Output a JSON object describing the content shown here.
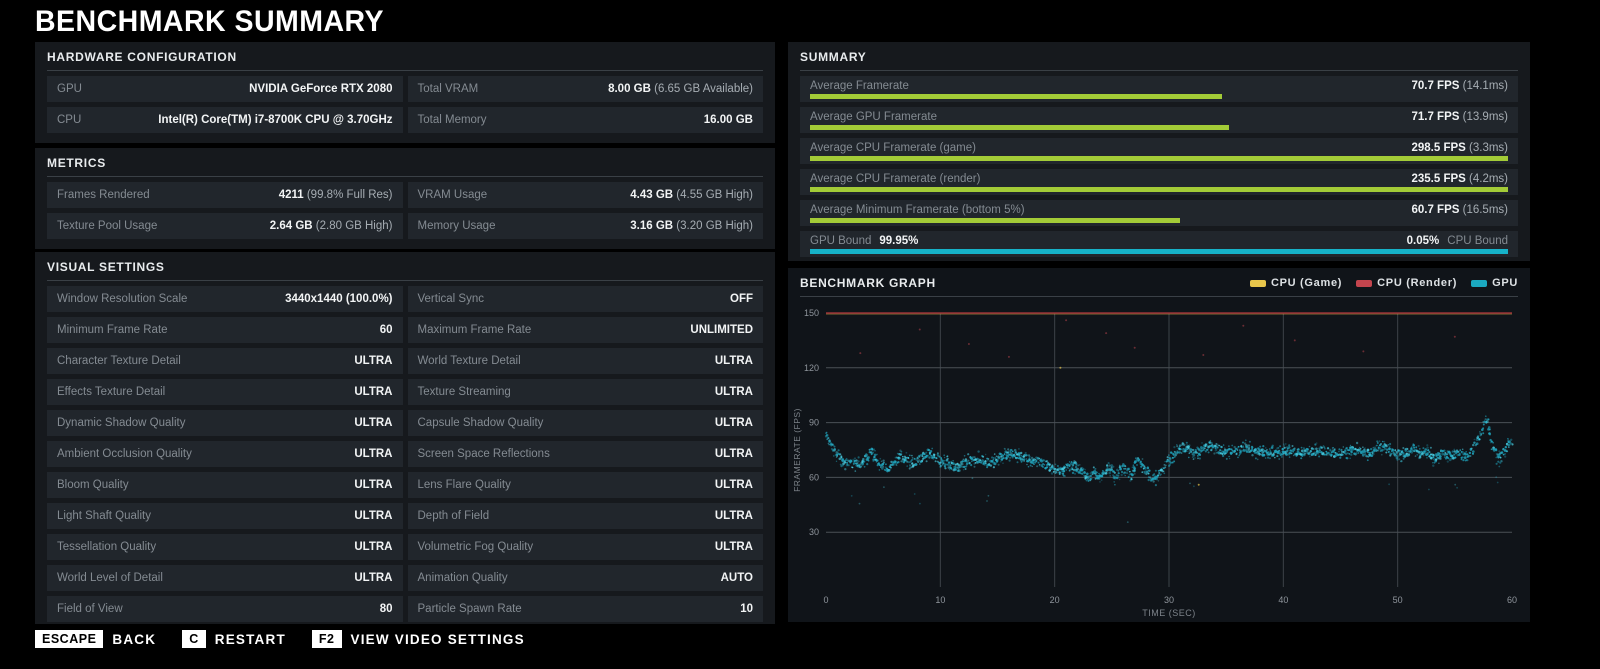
{
  "title": "BENCHMARK SUMMARY",
  "panels": {
    "hardware": {
      "header": "HARDWARE CONFIGURATION",
      "rows": [
        [
          {
            "label": "GPU",
            "value": "NVIDIA GeForce RTX 2080",
            "sub": ""
          },
          {
            "label": "Total VRAM",
            "value": "8.00 GB",
            "sub": "(6.65 GB Available)"
          }
        ],
        [
          {
            "label": "CPU",
            "value": "Intel(R) Core(TM) i7-8700K CPU @ 3.70GHz",
            "sub": ""
          },
          {
            "label": "Total Memory",
            "value": "16.00 GB",
            "sub": ""
          }
        ]
      ]
    },
    "metrics": {
      "header": "METRICS",
      "rows": [
        [
          {
            "label": "Frames Rendered",
            "value": "4211",
            "sub": "(99.8% Full Res)"
          },
          {
            "label": "VRAM Usage",
            "value": "4.43 GB",
            "sub": "(4.55 GB High)"
          }
        ],
        [
          {
            "label": "Texture Pool Usage",
            "value": "2.64 GB",
            "sub": "(2.80 GB High)"
          },
          {
            "label": "Memory Usage",
            "value": "3.16 GB",
            "sub": "(3.20 GB High)"
          }
        ]
      ]
    },
    "visual": {
      "header": "VISUAL SETTINGS",
      "rows": [
        [
          {
            "label": "Window Resolution Scale",
            "value": "3440x1440 (100.0%)",
            "sub": ""
          },
          {
            "label": "Vertical Sync",
            "value": "OFF",
            "sub": ""
          }
        ],
        [
          {
            "label": "Minimum Frame Rate",
            "value": "60",
            "sub": ""
          },
          {
            "label": "Maximum Frame Rate",
            "value": "UNLIMITED",
            "sub": ""
          }
        ],
        [
          {
            "label": "Character Texture Detail",
            "value": "ULTRA",
            "sub": ""
          },
          {
            "label": "World Texture Detail",
            "value": "ULTRA",
            "sub": ""
          }
        ],
        [
          {
            "label": "Effects Texture Detail",
            "value": "ULTRA",
            "sub": ""
          },
          {
            "label": "Texture Streaming",
            "value": "ULTRA",
            "sub": ""
          }
        ],
        [
          {
            "label": "Dynamic Shadow Quality",
            "value": "ULTRA",
            "sub": ""
          },
          {
            "label": "Capsule Shadow Quality",
            "value": "ULTRA",
            "sub": ""
          }
        ],
        [
          {
            "label": "Ambient Occlusion Quality",
            "value": "ULTRA",
            "sub": ""
          },
          {
            "label": "Screen Space Reflections",
            "value": "ULTRA",
            "sub": ""
          }
        ],
        [
          {
            "label": "Bloom Quality",
            "value": "ULTRA",
            "sub": ""
          },
          {
            "label": "Lens Flare Quality",
            "value": "ULTRA",
            "sub": ""
          }
        ],
        [
          {
            "label": "Light Shaft Quality",
            "value": "ULTRA",
            "sub": ""
          },
          {
            "label": "Depth of Field",
            "value": "ULTRA",
            "sub": ""
          }
        ],
        [
          {
            "label": "Tessellation Quality",
            "value": "ULTRA",
            "sub": ""
          },
          {
            "label": "Volumetric Fog Quality",
            "value": "ULTRA",
            "sub": ""
          }
        ],
        [
          {
            "label": "World Level of Detail",
            "value": "ULTRA",
            "sub": ""
          },
          {
            "label": "Animation Quality",
            "value": "AUTO",
            "sub": ""
          }
        ],
        [
          {
            "label": "Field of View",
            "value": "80",
            "sub": ""
          },
          {
            "label": "Particle Spawn Rate",
            "value": "10",
            "sub": ""
          }
        ]
      ]
    },
    "summary": {
      "header": "SUMMARY",
      "bar_color": "#a3cb37",
      "bars": [
        {
          "label": "Average Framerate",
          "value": "70.7 FPS",
          "sub": "(14.1ms)",
          "pct": 59
        },
        {
          "label": "Average GPU Framerate",
          "value": "71.7 FPS",
          "sub": "(13.9ms)",
          "pct": 60
        },
        {
          "label": "Average CPU Framerate (game)",
          "value": "298.5 FPS",
          "sub": "(3.3ms)",
          "pct": 100
        },
        {
          "label": "Average CPU Framerate (render)",
          "value": "235.5 FPS",
          "sub": "(4.2ms)",
          "pct": 100
        },
        {
          "label": "Average Minimum Framerate (bottom 5%)",
          "value": "60.7 FPS",
          "sub": "(16.5ms)",
          "pct": 53
        }
      ],
      "bound": {
        "left_label": "GPU Bound",
        "left_value": "99.95%",
        "right_value": "0.05%",
        "right_label": "CPU Bound",
        "pct": 100,
        "color": "#16b2c8"
      }
    },
    "graph": {
      "header": "BENCHMARK GRAPH"
    }
  },
  "chart_data": {
    "type": "scatter",
    "title": "BENCHMARK GRAPH",
    "xlabel": "TIME (SEC)",
    "ylabel": "FRAMERATE (FPS)",
    "xlim": [
      0,
      60
    ],
    "ylim": [
      0,
      150
    ],
    "xticks": [
      0,
      10,
      20,
      30,
      40,
      50,
      60
    ],
    "yticks": [
      30,
      60,
      90,
      120,
      150
    ],
    "grid": true,
    "legend_position": "top-right",
    "legend": [
      {
        "label": "CPU (Game)",
        "color": "#e8c64b"
      },
      {
        "label": "CPU (Render)",
        "color": "#c4454e"
      },
      {
        "label": "GPU",
        "color": "#1ba9c0"
      }
    ],
    "series": [
      {
        "name": "CPU (Game)",
        "type": "line",
        "capped_at": 150,
        "color": "#e8c64b",
        "stray_points": [
          [
            32.6,
            56
          ],
          [
            20.5,
            120
          ]
        ]
      },
      {
        "name": "CPU (Render)",
        "type": "line",
        "capped_at": 150,
        "color": "#993138",
        "stray_points": [
          [
            3,
            128
          ],
          [
            8.2,
            141
          ],
          [
            12.5,
            133
          ],
          [
            16,
            126
          ],
          [
            21,
            146
          ],
          [
            24.5,
            139
          ],
          [
            27,
            131
          ],
          [
            33,
            127
          ],
          [
            36.5,
            143
          ],
          [
            41,
            135
          ],
          [
            47,
            129
          ],
          [
            55,
            137
          ]
        ]
      },
      {
        "name": "GPU",
        "type": "scatter",
        "color": "#1fa3bc",
        "color_bright": "#49cde2",
        "anchors": [
          [
            0,
            84
          ],
          [
            0.4,
            78
          ],
          [
            1,
            71
          ],
          [
            2,
            68
          ],
          [
            3,
            67
          ],
          [
            4,
            73
          ],
          [
            4.6,
            68
          ],
          [
            5.5,
            66
          ],
          [
            6.5,
            70
          ],
          [
            7.5,
            68
          ],
          [
            8.5,
            72
          ],
          [
            9,
            74
          ],
          [
            9.6,
            70
          ],
          [
            10.5,
            68
          ],
          [
            11.5,
            66
          ],
          [
            12.5,
            68
          ],
          [
            13.5,
            70
          ],
          [
            14.5,
            69
          ],
          [
            15.5,
            71
          ],
          [
            16.5,
            73
          ],
          [
            17.5,
            71
          ],
          [
            18.5,
            68
          ],
          [
            19.5,
            66
          ],
          [
            20.5,
            64
          ],
          [
            21.5,
            66
          ],
          [
            22.5,
            63
          ],
          [
            23,
            60
          ],
          [
            23.5,
            64
          ],
          [
            24,
            59
          ],
          [
            24.7,
            65
          ],
          [
            25.3,
            60
          ],
          [
            26,
            67
          ],
          [
            26.7,
            61
          ],
          [
            27.3,
            69
          ],
          [
            28,
            63
          ],
          [
            28.7,
            59
          ],
          [
            29.3,
            64
          ],
          [
            30,
            70
          ],
          [
            30.7,
            74
          ],
          [
            31.5,
            76
          ],
          [
            32.5,
            74
          ],
          [
            33.5,
            77
          ],
          [
            34.5,
            75
          ],
          [
            35.5,
            74
          ],
          [
            36.5,
            76
          ],
          [
            37.5,
            74
          ],
          [
            38.5,
            75
          ],
          [
            39.5,
            73
          ],
          [
            40.5,
            75
          ],
          [
            41.5,
            74
          ],
          [
            42.5,
            73
          ],
          [
            43.5,
            75
          ],
          [
            44.5,
            74
          ],
          [
            45.5,
            73
          ],
          [
            46.5,
            75
          ],
          [
            47.5,
            74
          ],
          [
            48.5,
            76
          ],
          [
            49.5,
            74
          ],
          [
            50.5,
            73
          ],
          [
            51.5,
            75
          ],
          [
            52,
            71
          ],
          [
            52.7,
            75
          ],
          [
            53.3,
            70
          ],
          [
            54,
            74
          ],
          [
            54.7,
            70
          ],
          [
            55.3,
            74
          ],
          [
            56,
            71
          ],
          [
            56.6,
            76
          ],
          [
            57.2,
            83
          ],
          [
            57.8,
            92
          ],
          [
            58.3,
            78
          ],
          [
            58.8,
            70
          ],
          [
            59.3,
            75
          ],
          [
            60,
            80
          ]
        ]
      }
    ]
  },
  "footer": {
    "hints": [
      {
        "key": "ESCAPE",
        "label": "BACK"
      },
      {
        "key": "C",
        "label": "RESTART"
      },
      {
        "key": "F2",
        "label": "VIEW VIDEO SETTINGS"
      }
    ]
  }
}
